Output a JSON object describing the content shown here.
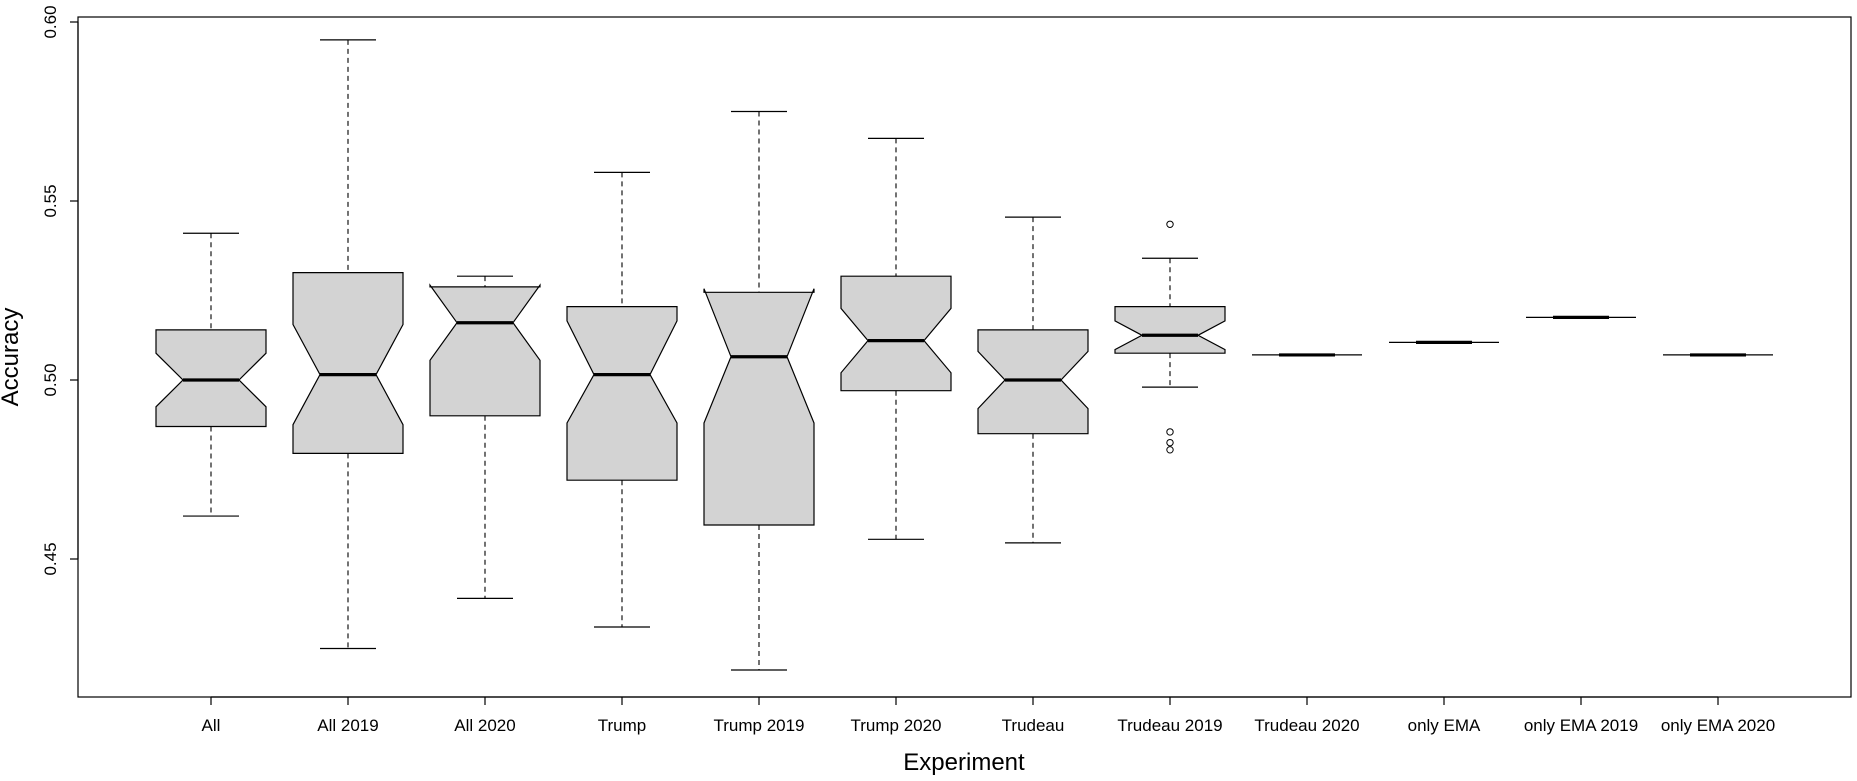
{
  "chart_data": {
    "type": "boxplot",
    "notched": true,
    "xlabel": "Experiment",
    "ylabel": "Accuracy",
    "ylim": [
      0.41,
      0.6
    ],
    "yticks": [
      0.45,
      0.5,
      0.55,
      0.6
    ],
    "ytick_labels": [
      "0.45",
      "0.50",
      "0.55",
      "0.60"
    ],
    "box_fill": "#d3d3d3",
    "categories": [
      "All",
      "All 2019",
      "All 2020",
      "Trump",
      "Trump 2019",
      "Trump 2020",
      "Trudeau",
      "Trudeau 2019",
      "Trudeau 2020",
      "only EMA",
      "only EMA 2019",
      "only EMA 2020"
    ],
    "boxes": [
      {
        "label": "All",
        "min": 0.462,
        "q1": 0.487,
        "median": 0.5,
        "q3": 0.514,
        "max": 0.541,
        "notch": [
          0.4925,
          0.5075
        ],
        "outliers": []
      },
      {
        "label": "All 2019",
        "min": 0.425,
        "q1": 0.4795,
        "median": 0.5015,
        "q3": 0.53,
        "max": 0.595,
        "notch": [
          0.4875,
          0.5155
        ],
        "outliers": []
      },
      {
        "label": "All 2020",
        "min": 0.439,
        "q1": 0.49,
        "median": 0.516,
        "q3": 0.526,
        "max": 0.529,
        "notch": [
          0.5055,
          0.5265
        ],
        "outliers": []
      },
      {
        "label": "Trump",
        "min": 0.431,
        "q1": 0.472,
        "median": 0.5015,
        "q3": 0.5205,
        "max": 0.558,
        "notch": [
          0.488,
          0.5165
        ],
        "outliers": []
      },
      {
        "label": "Trump 2019",
        "min": 0.419,
        "q1": 0.4595,
        "median": 0.5065,
        "q3": 0.5245,
        "max": 0.575,
        "notch": [
          0.488,
          0.5255
        ],
        "outliers": []
      },
      {
        "label": "Trump 2020",
        "min": 0.4555,
        "q1": 0.497,
        "median": 0.511,
        "q3": 0.529,
        "max": 0.5675,
        "notch": [
          0.502,
          0.52
        ],
        "outliers": []
      },
      {
        "label": "Trudeau",
        "min": 0.4545,
        "q1": 0.485,
        "median": 0.5,
        "q3": 0.514,
        "max": 0.5455,
        "notch": [
          0.492,
          0.508
        ],
        "outliers": []
      },
      {
        "label": "Trudeau 2019",
        "min": 0.498,
        "q1": 0.5075,
        "median": 0.5125,
        "q3": 0.5205,
        "max": 0.534,
        "notch": [
          0.5085,
          0.5165
        ],
        "outliers": [
          0.4805,
          0.4825,
          0.4855,
          0.5435
        ]
      },
      {
        "label": "Trudeau 2020",
        "min": 0.507,
        "q1": 0.507,
        "median": 0.507,
        "q3": 0.507,
        "max": 0.507,
        "notch": [
          0.507,
          0.507
        ],
        "outliers": []
      },
      {
        "label": "only EMA",
        "min": 0.5105,
        "q1": 0.5105,
        "median": 0.5105,
        "q3": 0.5105,
        "max": 0.5105,
        "notch": [
          0.5105,
          0.5105
        ],
        "outliers": []
      },
      {
        "label": "only EMA 2019",
        "min": 0.5175,
        "q1": 0.5175,
        "median": 0.5175,
        "q3": 0.5175,
        "max": 0.5175,
        "notch": [
          0.5175,
          0.5175
        ],
        "outliers": []
      },
      {
        "label": "only EMA 2020",
        "min": 0.507,
        "q1": 0.507,
        "median": 0.507,
        "q3": 0.507,
        "max": 0.507,
        "notch": [
          0.507,
          0.507
        ],
        "outliers": []
      }
    ]
  }
}
